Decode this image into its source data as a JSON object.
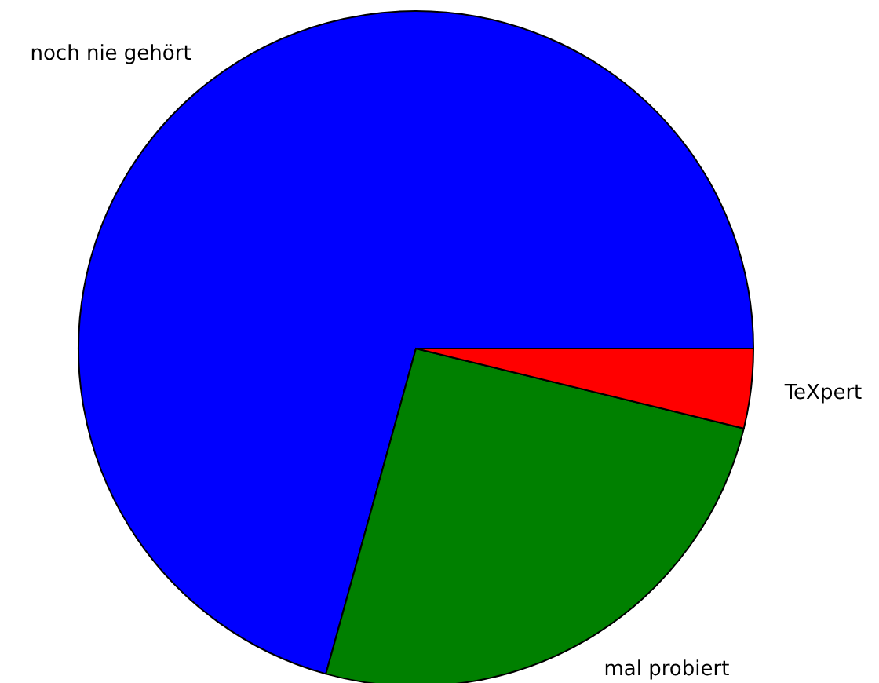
{
  "chart_data": {
    "type": "pie",
    "categories": [
      "noch nie gehört",
      "mal probiert",
      "TeXpert"
    ],
    "values": [
      70.7,
      25.5,
      3.8
    ],
    "colors": [
      "#0000ff",
      "#008000",
      "#ff0000"
    ]
  }
}
